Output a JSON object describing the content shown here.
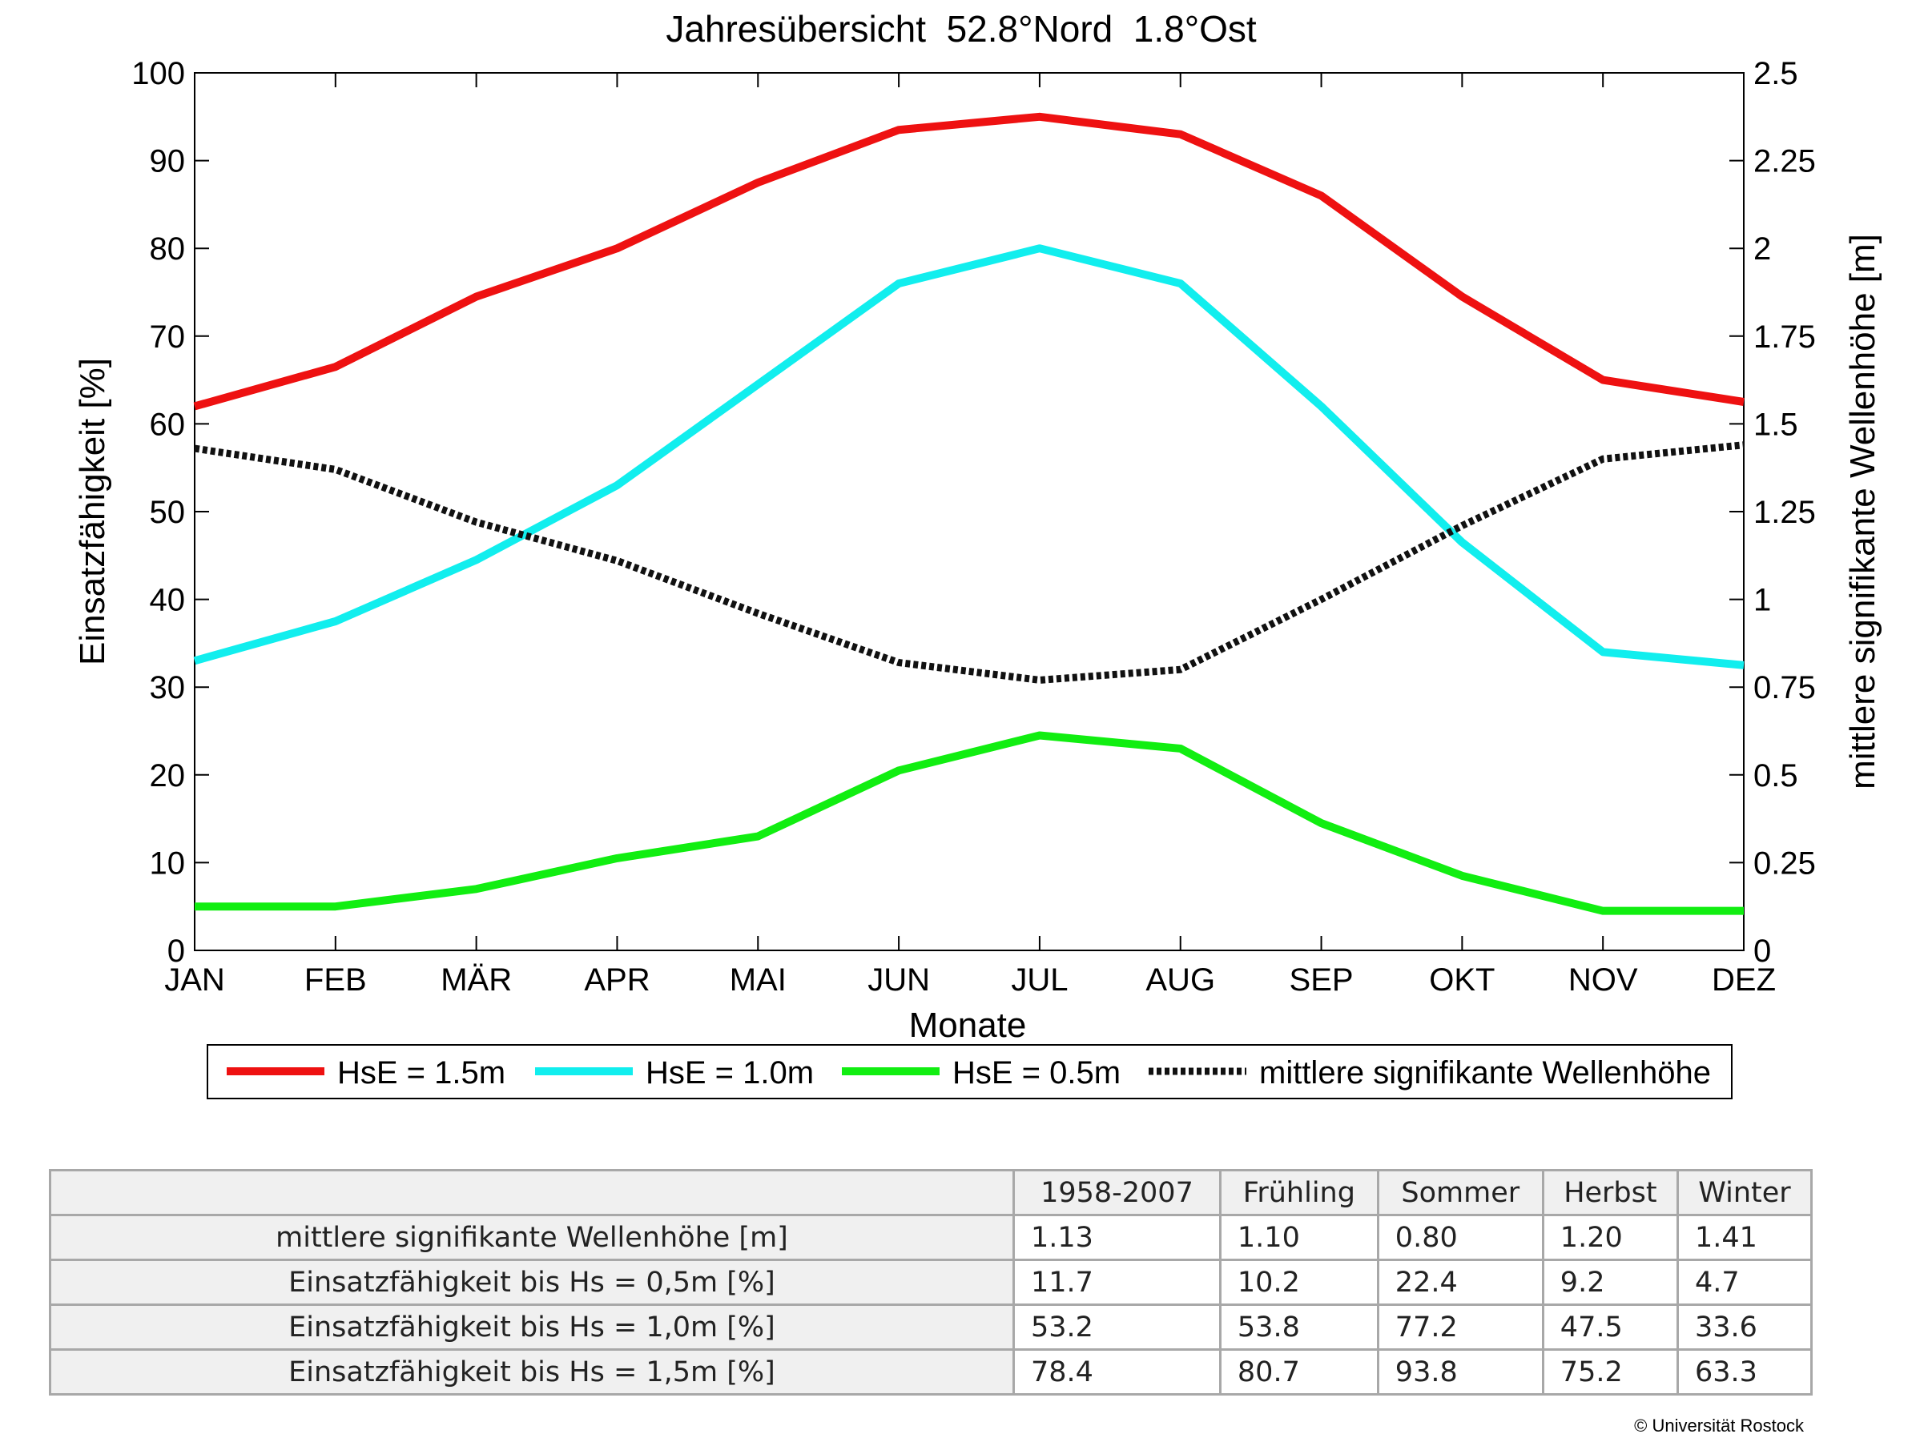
{
  "chart_data": {
    "type": "line",
    "title": "Jahresübersicht  52.8°Nord  1.8°Ost",
    "xlabel": "Monate",
    "ylabel": "Einsatzfähigkeit [%]",
    "y2label": "mittlere signifikante Wellenhöhe [m]",
    "categories": [
      "JAN",
      "FEB",
      "MÄR",
      "APR",
      "MAI",
      "JUN",
      "JUL",
      "AUG",
      "SEP",
      "OKT",
      "NOV",
      "DEZ"
    ],
    "ylim": [
      0,
      100
    ],
    "yticks": [
      "0",
      "10",
      "20",
      "30",
      "40",
      "50",
      "60",
      "70",
      "80",
      "90",
      "100"
    ],
    "y2lim": [
      0,
      2.5
    ],
    "y2ticks": [
      "0",
      "0.25",
      "0.5",
      "0.75",
      "1",
      "1.25",
      "1.5",
      "1.75",
      "2",
      "2.25",
      "2.5"
    ],
    "grid": false,
    "legend_position": "bottom",
    "series": [
      {
        "name": "HsE = 1.5m",
        "color": "#ee1111",
        "axis": "left",
        "style": "solid",
        "values": [
          62,
          66.5,
          74.5,
          80,
          87.5,
          93.5,
          95,
          93,
          86,
          74.5,
          65,
          62.5
        ]
      },
      {
        "name": "HsE = 1.0m",
        "color": "#11eeee",
        "axis": "left",
        "style": "solid",
        "values": [
          33,
          37.5,
          44.5,
          53,
          64.5,
          76,
          80,
          76,
          62,
          46.5,
          34,
          32.5
        ]
      },
      {
        "name": "HsE = 0.5m",
        "color": "#11ee11",
        "axis": "left",
        "style": "solid",
        "values": [
          5,
          5,
          7,
          10.5,
          13,
          20.5,
          24.5,
          23,
          14.5,
          8.5,
          4.5,
          4.5
        ]
      },
      {
        "name": "mittlere signifikante Wellenhöhe",
        "color": "#111111",
        "axis": "right",
        "style": "dotted",
        "values": [
          1.43,
          1.37,
          1.22,
          1.11,
          0.96,
          0.82,
          0.77,
          0.8,
          1.0,
          1.21,
          1.4,
          1.44
        ]
      }
    ]
  },
  "table": {
    "headers": [
      "1958-2007",
      "Frühling",
      "Sommer",
      "Herbst",
      "Winter"
    ],
    "rows": [
      {
        "label": "mittlere signifikante Wellenhöhe [m]",
        "values": [
          "1.13",
          "1.10",
          "0.80",
          "1.20",
          "1.41"
        ]
      },
      {
        "label": "Einsatzfähigkeit bis Hs = 0,5m [%]",
        "values": [
          "11.7",
          "10.2",
          "22.4",
          "9.2",
          "4.7"
        ]
      },
      {
        "label": "Einsatzfähigkeit bis Hs = 1,0m [%]",
        "values": [
          "53.2",
          "53.8",
          "77.2",
          "47.5",
          "33.6"
        ]
      },
      {
        "label": "Einsatzfähigkeit bis Hs = 1,5m [%]",
        "values": [
          "78.4",
          "80.7",
          "93.8",
          "75.2",
          "63.3"
        ]
      }
    ]
  },
  "copyright": "© Universität Rostock"
}
